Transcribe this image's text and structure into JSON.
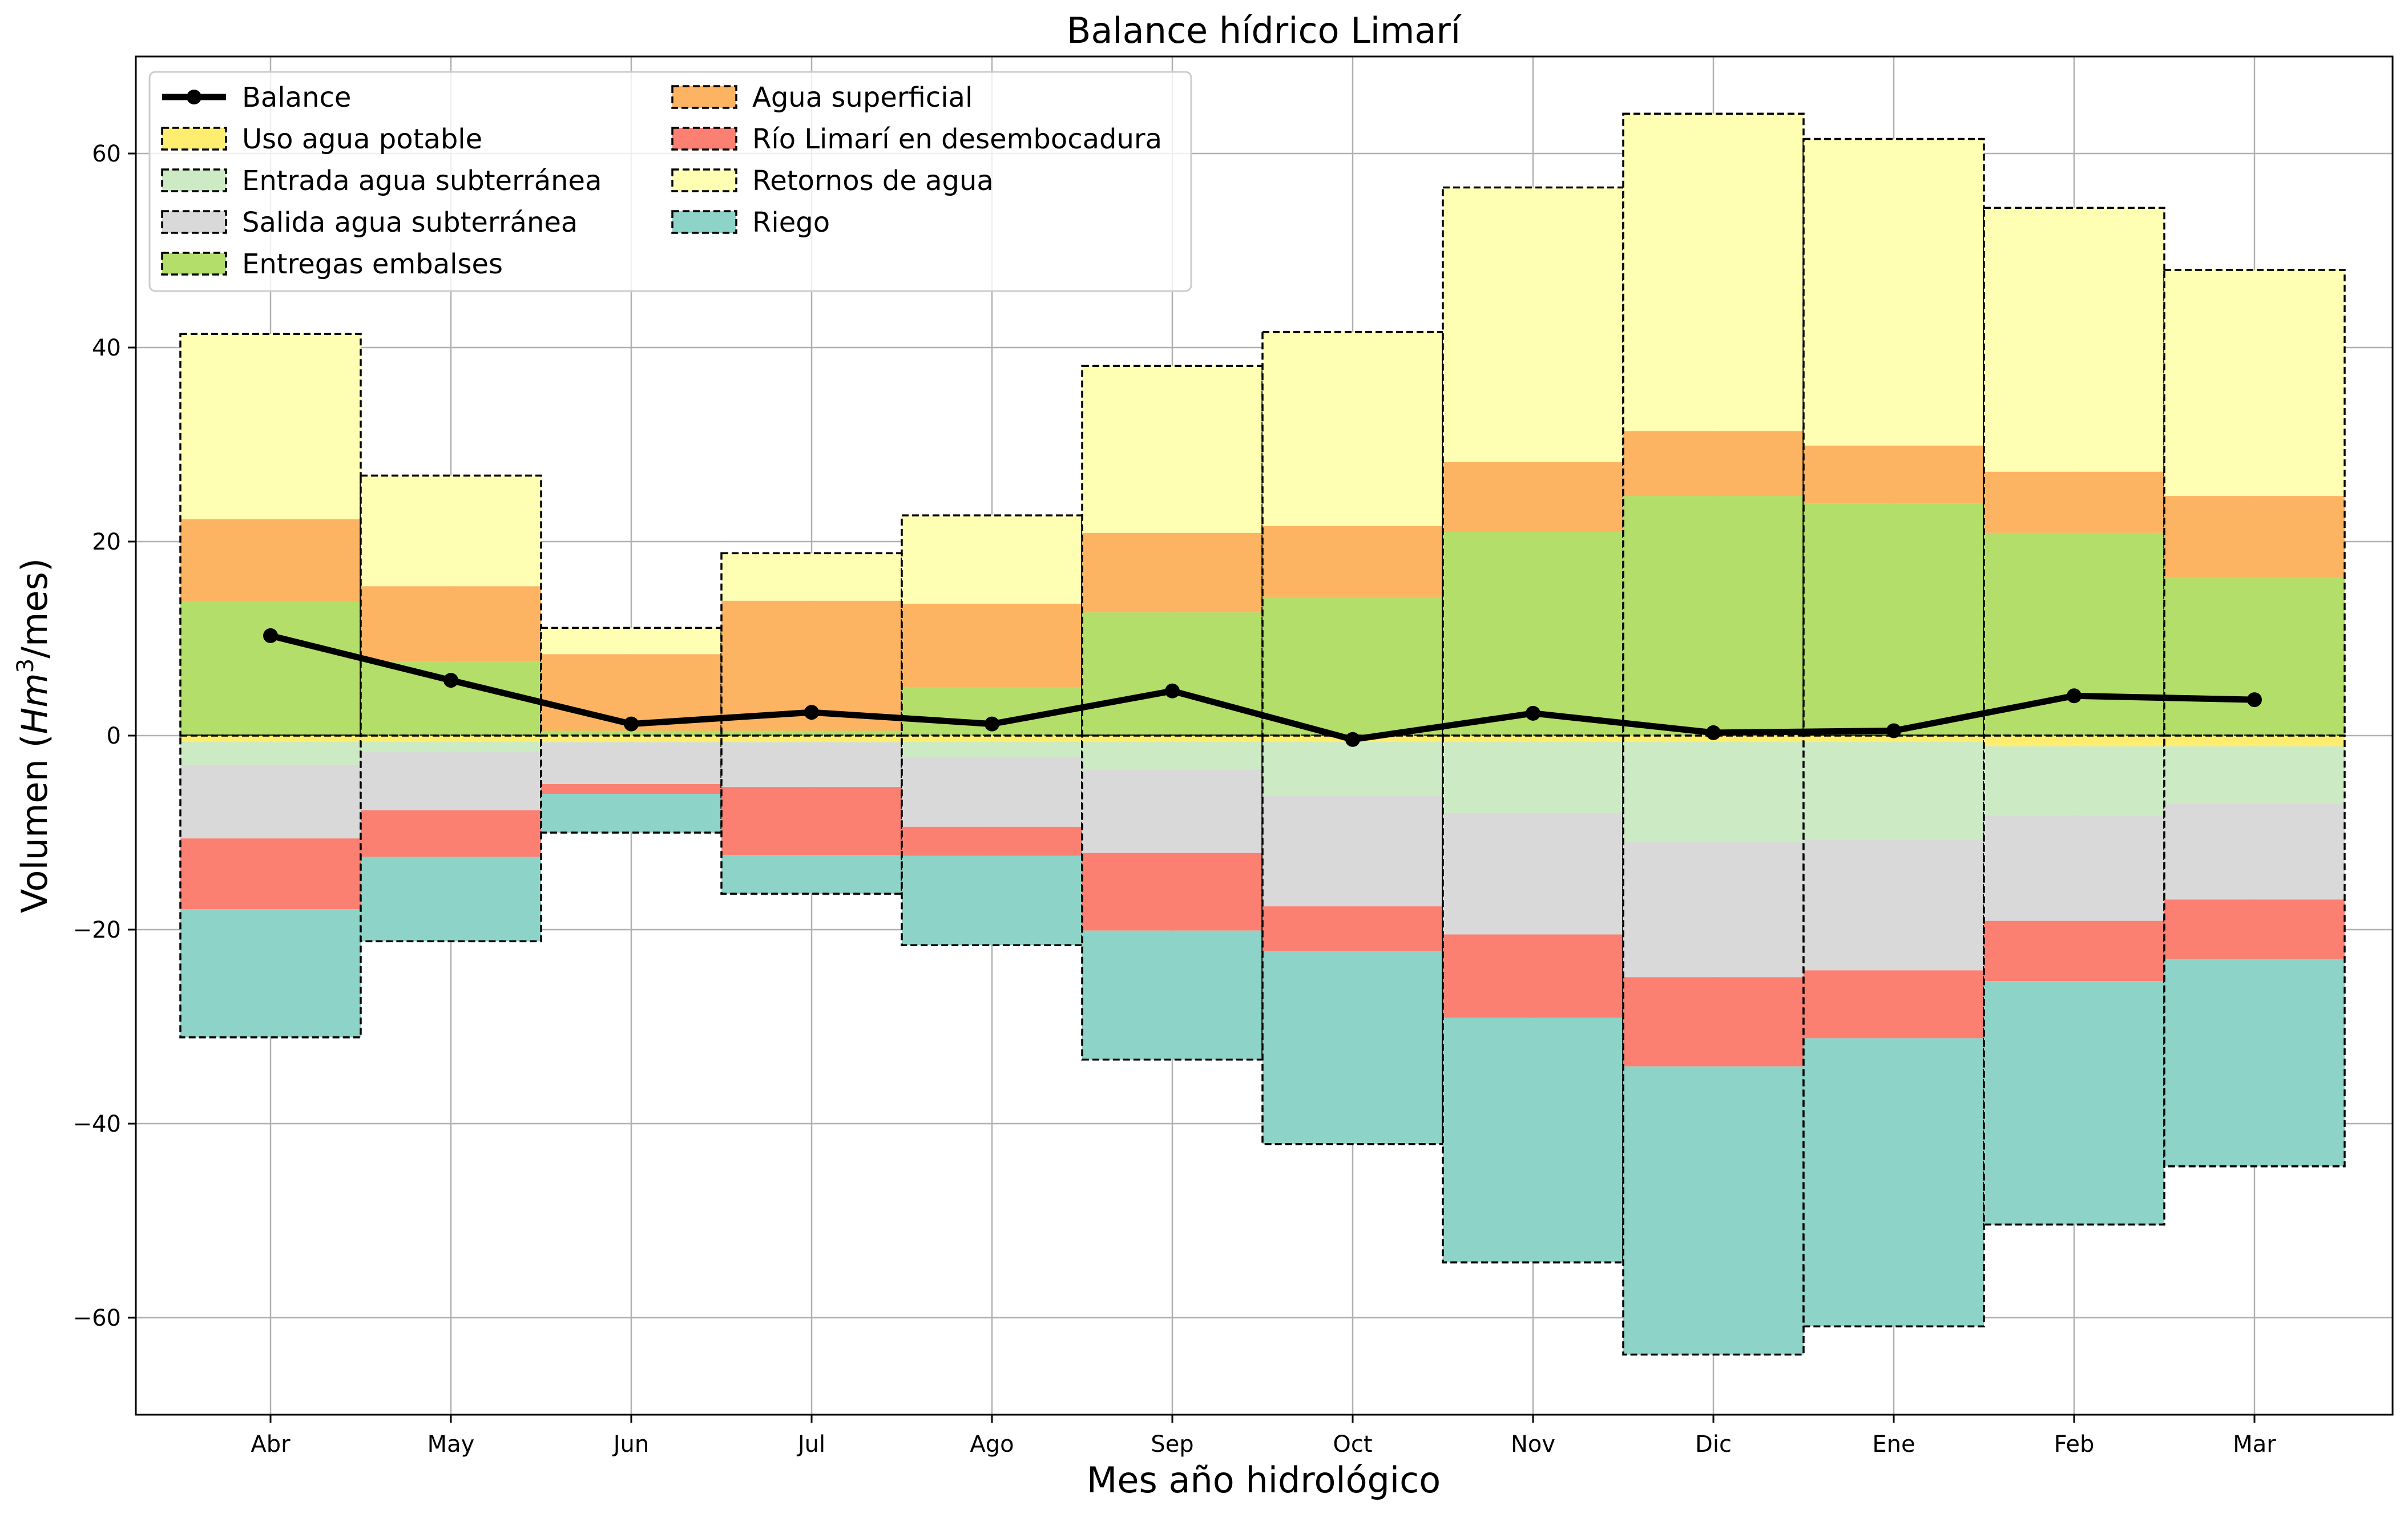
{
  "chart_data": {
    "type": "bar",
    "title": "Balance hídrico Limarí",
    "xlabel": "Mes año hidrológico",
    "ylabel_main": "Volumen (",
    "ylabel_italic": "Hm",
    "ylabel_sup": "3",
    "ylabel_tail": "/mes)",
    "ylim": [
      -70,
      70
    ],
    "yticks": [
      -60,
      -40,
      -20,
      0,
      20,
      40,
      60
    ],
    "ytick_labels": [
      "−60",
      "−40",
      "−20",
      "0",
      "20",
      "40",
      "60"
    ],
    "grid": true,
    "legend_position": "top-left",
    "categories": [
      "Abr",
      "May",
      "Jun",
      "Jul",
      "Ago",
      "Sep",
      "Oct",
      "Nov",
      "Dic",
      "Ene",
      "Feb",
      "Mar"
    ],
    "positive_series": [
      {
        "name": "Entregas embalses",
        "color": "#b3de69",
        "values": [
          13.8,
          7.7,
          0.5,
          0.5,
          5.0,
          12.7,
          14.3,
          21.0,
          24.7,
          23.9,
          20.9,
          16.3
        ]
      },
      {
        "name": "Agua superficial",
        "color": "#fdb462",
        "values": [
          8.5,
          7.7,
          7.9,
          13.4,
          8.6,
          8.2,
          7.3,
          7.2,
          6.7,
          6.0,
          6.3,
          8.4
        ]
      },
      {
        "name": "Retornos de agua",
        "color": "#ffffb3",
        "values": [
          19.1,
          11.4,
          2.7,
          4.9,
          9.1,
          17.2,
          20.0,
          28.3,
          32.7,
          31.6,
          27.2,
          23.3
        ]
      }
    ],
    "negative_series": [
      {
        "name": "Uso agua potable",
        "color": "#ffed6f",
        "values": [
          -0.6,
          -0.6,
          -0.6,
          -0.6,
          -0.6,
          -0.6,
          -0.6,
          -0.6,
          -0.6,
          -0.6,
          -1.1,
          -1.1
        ]
      },
      {
        "name": "Entrada agua subterránea",
        "color": "#ccebc5",
        "values": [
          -2.4,
          -1.0,
          -0.1,
          -0.1,
          -1.6,
          -2.9,
          -5.6,
          -7.4,
          -10.4,
          -10.1,
          -7.1,
          -5.9
        ]
      },
      {
        "name": "Salida agua subterránea",
        "color": "#d9d9d9",
        "values": [
          -7.6,
          -6.1,
          -4.3,
          -4.6,
          -7.2,
          -8.6,
          -11.4,
          -12.5,
          -13.9,
          -13.5,
          -10.9,
          -9.9
        ]
      },
      {
        "name": "Río Limarí en desembocadura",
        "color": "#fb8072",
        "values": [
          -7.3,
          -4.8,
          -1.0,
          -7.0,
          -3.0,
          -8.0,
          -4.6,
          -8.6,
          -9.2,
          -7.0,
          -6.2,
          -6.1
        ]
      },
      {
        "name": "Riego",
        "color": "#8dd3c7",
        "values": [
          -13.2,
          -8.7,
          -4.0,
          -4.0,
          -9.2,
          -13.3,
          -19.9,
          -25.2,
          -29.7,
          -29.7,
          -25.1,
          -21.4
        ]
      }
    ],
    "balance": {
      "name": "Balance",
      "color": "#000000",
      "values": [
        10.3,
        5.7,
        1.2,
        2.4,
        1.2,
        4.6,
        -0.4,
        2.3,
        0.3,
        0.5,
        4.1,
        3.7
      ]
    },
    "legend_entries": [
      {
        "name": "Balance",
        "kind": "line",
        "color": "#000000"
      },
      {
        "name": "Uso agua potable",
        "kind": "patch",
        "color": "#ffed6f"
      },
      {
        "name": "Entrada agua subterránea",
        "kind": "patch",
        "color": "#ccebc5"
      },
      {
        "name": "Salida agua subterránea",
        "kind": "patch",
        "color": "#d9d9d9"
      },
      {
        "name": "Entregas embalses",
        "kind": "patch",
        "color": "#b3de69"
      },
      {
        "name": "Agua superficial",
        "kind": "patch",
        "color": "#fdb462"
      },
      {
        "name": "Río Limarí en desembocadura",
        "kind": "patch",
        "color": "#fb8072"
      },
      {
        "name": "Retornos de agua",
        "kind": "patch",
        "color": "#ffffb3"
      },
      {
        "name": "Riego",
        "kind": "patch",
        "color": "#8dd3c7"
      }
    ]
  }
}
